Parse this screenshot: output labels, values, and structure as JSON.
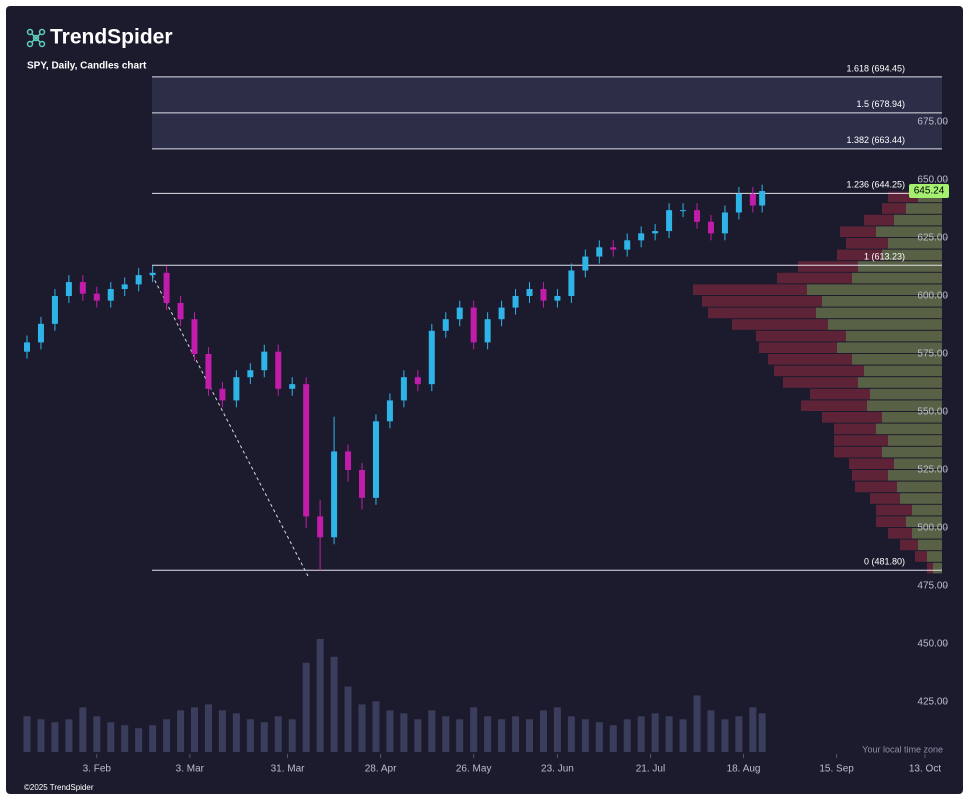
{
  "brand": "TrendSpider",
  "copyright": "©2025 TrendSpider",
  "chart_data": {
    "type": "candlestick",
    "title": "SPY, Daily, Candles chart",
    "timezone_note": "Your local time zone",
    "x": [
      0,
      3,
      6,
      9,
      12,
      15,
      18,
      21,
      24,
      27,
      30,
      33,
      36,
      39,
      42,
      45,
      48,
      51,
      54,
      57,
      60,
      63,
      66,
      69,
      72,
      75,
      78,
      81,
      84,
      87,
      90,
      93,
      96,
      99,
      102,
      105,
      108,
      111,
      114,
      117,
      120,
      123,
      126,
      129,
      132,
      135,
      138,
      141,
      144,
      147,
      150,
      153,
      156,
      158
    ],
    "open": [
      576,
      580,
      588,
      600,
      606,
      601,
      598,
      603,
      605,
      609,
      610,
      597,
      590,
      575,
      560,
      555,
      565,
      568,
      576,
      560,
      562,
      505,
      496,
      533,
      525,
      513,
      546,
      555,
      565,
      562,
      585,
      590,
      595,
      580,
      590,
      595,
      600,
      603,
      598,
      600,
      611,
      617,
      621,
      620,
      624,
      627,
      628,
      637,
      637,
      632,
      627,
      636,
      644,
      639
    ],
    "high": [
      583,
      591,
      603,
      609,
      609,
      604,
      606,
      608,
      612,
      613,
      613,
      600,
      593,
      578,
      563,
      568,
      571,
      579,
      579,
      565,
      565,
      512,
      548,
      536,
      528,
      549,
      558,
      568,
      568,
      588,
      593,
      598,
      598,
      593,
      598,
      603,
      606,
      606,
      603,
      614,
      620,
      624,
      624,
      627,
      630,
      631,
      640,
      640,
      640,
      635,
      639,
      647,
      647,
      648
    ],
    "low": [
      573,
      577,
      585,
      597,
      598,
      595,
      595,
      600,
      602,
      606,
      594,
      587,
      572,
      557,
      552,
      552,
      562,
      565,
      557,
      557,
      500,
      481.8,
      493,
      520,
      508,
      510,
      543,
      552,
      559,
      559,
      582,
      587,
      577,
      577,
      587,
      592,
      597,
      595,
      595,
      597,
      608,
      614,
      617,
      617,
      621,
      624,
      625,
      634,
      629,
      624,
      624,
      633,
      636,
      636
    ],
    "close": [
      580,
      588,
      600,
      606,
      601,
      598,
      603,
      605,
      609,
      610,
      597,
      590,
      575,
      560,
      555,
      565,
      568,
      576,
      560,
      562,
      505,
      496,
      533,
      525,
      513,
      546,
      555,
      565,
      562,
      585,
      590,
      595,
      580,
      590,
      595,
      600,
      603,
      598,
      600,
      611,
      617,
      621,
      620,
      624,
      627,
      628,
      637,
      637,
      632,
      627,
      636,
      644,
      639,
      645.24
    ],
    "volume": [
      60,
      55,
      50,
      55,
      75,
      60,
      50,
      45,
      40,
      45,
      55,
      70,
      75,
      80,
      70,
      65,
      55,
      50,
      60,
      55,
      150,
      190,
      160,
      110,
      80,
      85,
      70,
      65,
      55,
      70,
      60,
      55,
      75,
      60,
      55,
      60,
      55,
      70,
      75,
      60,
      55,
      50,
      45,
      55,
      60,
      65,
      60,
      55,
      95,
      70,
      55,
      60,
      75,
      65
    ],
    "volume_lim": [
      0,
      200
    ],
    "up_color": "#2fb4e8",
    "down_color": "#c21cab",
    "volume_color": "#3b3d5c",
    "xlim": [
      0,
      193
    ],
    "xticks": [
      {
        "value": 15,
        "label": "3. Feb"
      },
      {
        "value": 35,
        "label": "3. Mar"
      },
      {
        "value": 56,
        "label": "31. Mar"
      },
      {
        "value": 76,
        "label": "28. Apr"
      },
      {
        "value": 96,
        "label": "26. May"
      },
      {
        "value": 114,
        "label": "23. Jun"
      },
      {
        "value": 134,
        "label": "21. Jul"
      },
      {
        "value": 154,
        "label": "18. Aug"
      },
      {
        "value": 174,
        "label": "15. Sep"
      },
      {
        "value": 193,
        "label": "13. Oct"
      }
    ],
    "ylim": [
      405,
      705
    ],
    "yticks": [
      {
        "value": 425,
        "label": "425.00"
      },
      {
        "value": 450,
        "label": "450.00"
      },
      {
        "value": 475,
        "label": "475.00"
      },
      {
        "value": 500,
        "label": "500.00"
      },
      {
        "value": 525,
        "label": "525.00"
      },
      {
        "value": 550,
        "label": "550.00"
      },
      {
        "value": 575,
        "label": "575.00"
      },
      {
        "value": 600,
        "label": "600.00"
      },
      {
        "value": 625,
        "label": "625.00"
      },
      {
        "value": 650,
        "label": "650.00"
      },
      {
        "value": 675,
        "label": "675.00"
      }
    ],
    "fib_levels": [
      {
        "value": 694.45,
        "label": "1.618 (694.45)"
      },
      {
        "value": 678.94,
        "label": "1.5 (678.94)"
      },
      {
        "value": 663.44,
        "label": "1.382 (663.44)"
      },
      {
        "value": 644.25,
        "label": "1.236 (644.25)"
      },
      {
        "value": 613.23,
        "label": "1 (613.23)"
      },
      {
        "value": 481.8,
        "label": "0 (481.80)"
      }
    ],
    "profile": {
      "bins": [
        480,
        485,
        490,
        495,
        500,
        505,
        510,
        515,
        520,
        525,
        530,
        535,
        540,
        545,
        550,
        555,
        560,
        565,
        570,
        575,
        580,
        585,
        590,
        595,
        600,
        605,
        610,
        615,
        620,
        625,
        630,
        635,
        640,
        645
      ],
      "up": [
        3,
        5,
        8,
        10,
        12,
        10,
        14,
        15,
        18,
        16,
        20,
        18,
        22,
        20,
        25,
        24,
        28,
        26,
        30,
        35,
        32,
        38,
        42,
        40,
        45,
        30,
        28,
        20,
        18,
        22,
        16,
        12,
        8
      ],
      "down": [
        2,
        4,
        6,
        8,
        10,
        12,
        10,
        14,
        12,
        15,
        16,
        18,
        14,
        20,
        22,
        20,
        25,
        30,
        28,
        26,
        30,
        32,
        36,
        40,
        38,
        25,
        20,
        15,
        14,
        12,
        10,
        8,
        10
      ],
      "lim": [
        0,
        100
      ],
      "up_color": "#8a9a5b",
      "down_color": "#8b2a3e"
    },
    "last_price_color": "#a6f070"
  }
}
